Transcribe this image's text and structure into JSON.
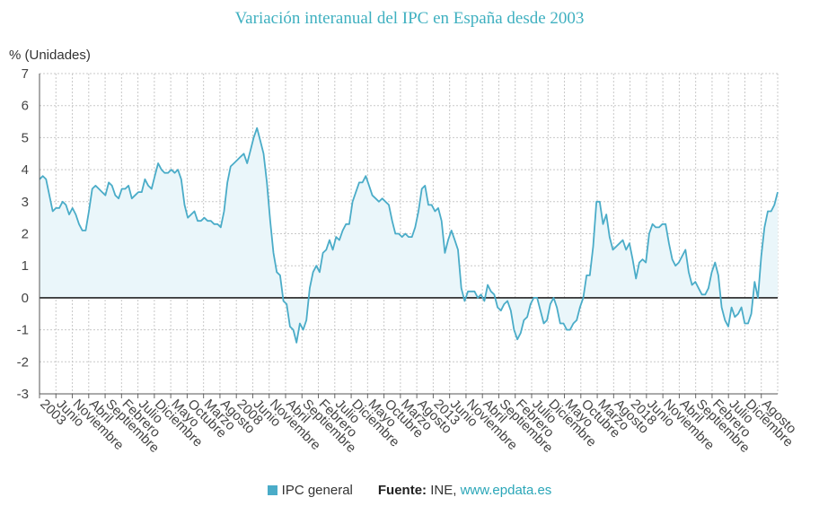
{
  "chart_data": {
    "type": "area",
    "title": "Variación interanual del IPC en España desde 2003",
    "ylabel": "% (Unidades)",
    "xlabel": "",
    "ylim": [
      -3,
      7
    ],
    "yticks": [
      "7",
      "6",
      "5",
      "4",
      "3",
      "2",
      "1",
      "0",
      "-1",
      "-2",
      "-3"
    ],
    "grid": true,
    "legend_position": "bottom",
    "xtick_labels": [
      "2003",
      "Junio",
      "Noviembre",
      "Abril",
      "Septiembre",
      "Febrero",
      "Julio",
      "Diciembre",
      "Mayo",
      "Octubre",
      "Marzo",
      "Agosto",
      "2008",
      "Junio",
      "Noviembre",
      "Abril",
      "Septiembre",
      "Febrero",
      "Julio",
      "Diciembre",
      "Mayo",
      "Octubre",
      "Marzo",
      "Agosto",
      "2013",
      "Junio",
      "Noviembre",
      "Abril",
      "Septiembre",
      "Febrero",
      "Julio",
      "Diciembre",
      "Mayo",
      "Octubre",
      "Marzo",
      "Agosto",
      "2018",
      "Junio",
      "Noviembre",
      "Abril",
      "Septiembre",
      "Febrero",
      "Julio",
      "Diciembre",
      "Agosto"
    ],
    "series": [
      {
        "name": "IPC general",
        "color": "#4aacc8",
        "fill": "#eaf6fa",
        "x_start": "2003-01",
        "values": [
          3.7,
          3.8,
          3.7,
          3.2,
          2.7,
          2.8,
          2.8,
          3.0,
          2.9,
          2.6,
          2.8,
          2.6,
          2.3,
          2.1,
          2.1,
          2.7,
          3.4,
          3.5,
          3.4,
          3.3,
          3.2,
          3.6,
          3.5,
          3.2,
          3.1,
          3.4,
          3.4,
          3.5,
          3.1,
          3.2,
          3.3,
          3.3,
          3.7,
          3.5,
          3.4,
          3.8,
          4.2,
          4.0,
          3.9,
          3.9,
          4.0,
          3.9,
          4.0,
          3.7,
          2.9,
          2.5,
          2.6,
          2.7,
          2.4,
          2.4,
          2.5,
          2.4,
          2.4,
          2.3,
          2.3,
          2.2,
          2.7,
          3.6,
          4.1,
          4.2,
          4.3,
          4.4,
          4.5,
          4.2,
          4.6,
          5.0,
          5.3,
          4.9,
          4.5,
          3.6,
          2.4,
          1.4,
          0.8,
          0.7,
          -0.1,
          -0.2,
          -0.9,
          -1.0,
          -1.4,
          -0.8,
          -1.0,
          -0.7,
          0.3,
          0.8,
          1.0,
          0.8,
          1.4,
          1.5,
          1.8,
          1.5,
          1.9,
          1.8,
          2.1,
          2.3,
          2.3,
          3.0,
          3.3,
          3.6,
          3.6,
          3.8,
          3.5,
          3.2,
          3.1,
          3.0,
          3.1,
          3.0,
          2.9,
          2.4,
          2.0,
          2.0,
          1.9,
          2.0,
          1.9,
          1.9,
          2.2,
          2.7,
          3.4,
          3.5,
          2.9,
          2.9,
          2.7,
          2.8,
          2.4,
          1.4,
          1.8,
          2.1,
          1.8,
          1.5,
          0.3,
          -0.1,
          0.2,
          0.2,
          0.2,
          0.0,
          0.1,
          -0.1,
          0.4,
          0.2,
          0.1,
          -0.3,
          -0.4,
          -0.2,
          -0.1,
          -0.4,
          -1.0,
          -1.3,
          -1.1,
          -0.7,
          -0.6,
          -0.2,
          0.0,
          0.0,
          -0.4,
          -0.8,
          -0.7,
          -0.2,
          0.0,
          -0.3,
          -0.8,
          -0.8,
          -1.0,
          -1.0,
          -0.8,
          -0.7,
          -0.3,
          0.0,
          0.7,
          0.7,
          1.6,
          3.0,
          3.0,
          2.3,
          2.6,
          1.9,
          1.5,
          1.6,
          1.7,
          1.8,
          1.5,
          1.7,
          1.2,
          0.6,
          1.1,
          1.2,
          1.1,
          2.0,
          2.3,
          2.2,
          2.2,
          2.3,
          2.3,
          1.7,
          1.2,
          1.0,
          1.1,
          1.3,
          1.5,
          0.8,
          0.4,
          0.5,
          0.3,
          0.1,
          0.1,
          0.3,
          0.8,
          1.1,
          0.7,
          -0.3,
          -0.7,
          -0.9,
          -0.3,
          -0.6,
          -0.5,
          -0.3,
          -0.8,
          -0.8,
          -0.5,
          0.5,
          0.0,
          1.3,
          2.2,
          2.7,
          2.7,
          2.9,
          3.3
        ]
      }
    ],
    "zero_line": 0
  },
  "footer": {
    "legend_label": "IPC general",
    "source_label": "Fuente:",
    "source_text": " INE, ",
    "source_link": "www.epdata.es"
  }
}
